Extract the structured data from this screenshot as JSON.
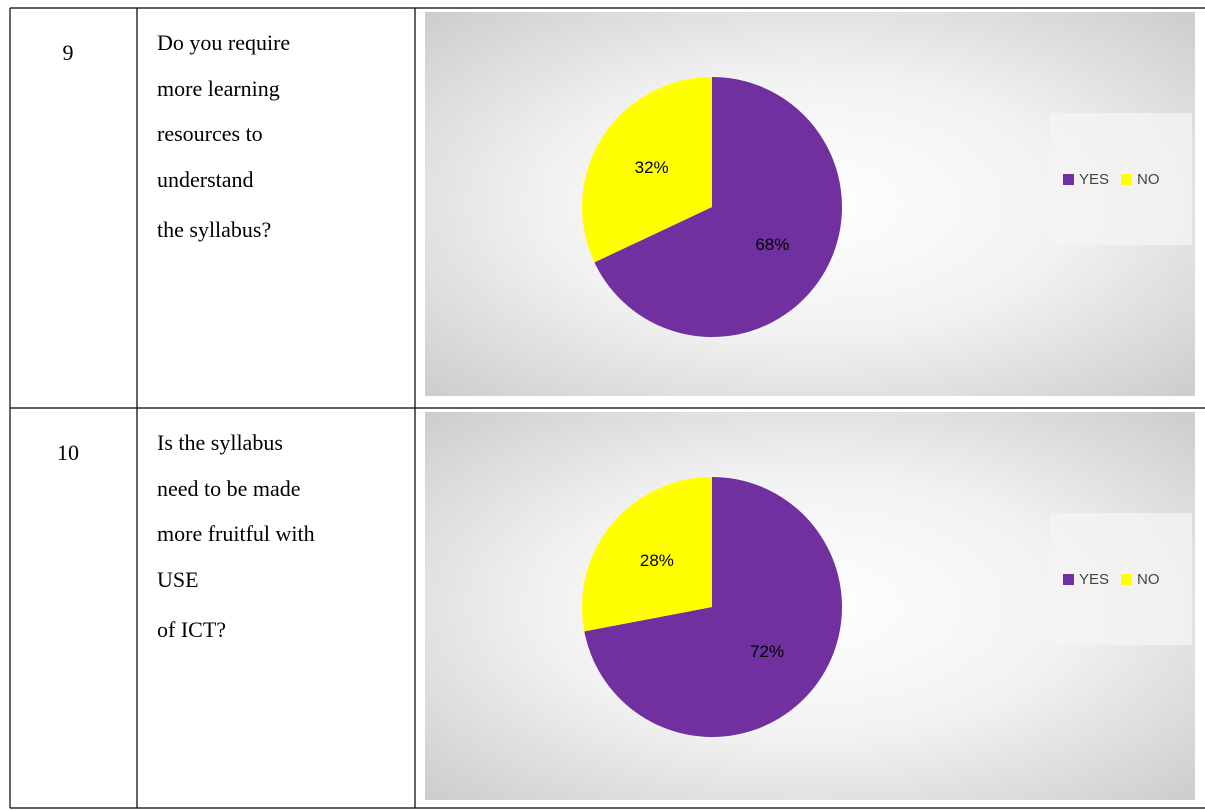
{
  "table": {
    "rows": [
      {
        "number": "9",
        "question": [
          "Do you require",
          "more learning",
          "resources to",
          "understand",
          "the syllabus?"
        ]
      },
      {
        "number": "10",
        "question": [
          "Is the syllabus",
          "need to be made",
          "more fruitful with",
          "USE",
          "of ICT?"
        ]
      }
    ]
  },
  "chart_data": [
    {
      "type": "pie",
      "categories": [
        "YES",
        "NO"
      ],
      "values": [
        68,
        32
      ],
      "value_labels": [
        "68%",
        "32%"
      ],
      "colors": [
        "#7030a0",
        "#ffff00"
      ],
      "legend": "right"
    },
    {
      "type": "pie",
      "categories": [
        "YES",
        "NO"
      ],
      "values": [
        72,
        28
      ],
      "value_labels": [
        "72%",
        "28%"
      ],
      "colors": [
        "#7030a0",
        "#ffff00"
      ],
      "legend": "right"
    }
  ]
}
